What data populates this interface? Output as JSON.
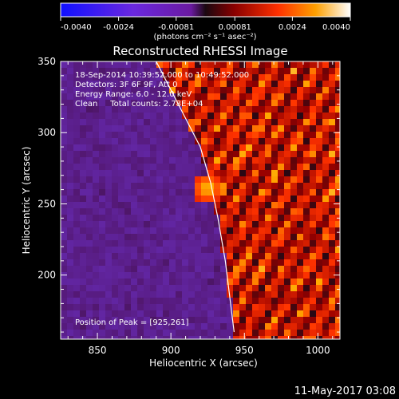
{
  "chart_data": {
    "type": "heatmap",
    "title": "Reconstructed RHESSI Image",
    "xlabel": "Heliocentric X (arcsec)",
    "ylabel": "Heliocentric Y (arcsec)",
    "xlim": [
      825,
      1015
    ],
    "ylim": [
      155,
      350
    ],
    "x_ticks": [
      850,
      900,
      950,
      1000
    ],
    "y_ticks": [
      200,
      250,
      300,
      350
    ],
    "colorbar": {
      "ticks": [
        "-0.0040",
        "-0.0024",
        "-0.00081",
        "0.00081",
        "0.0024",
        "0.0040"
      ],
      "range": [
        -0.004,
        0.004
      ],
      "unit_label": "(photons cm⁻² s⁻¹ asec⁻²)"
    },
    "info": [
      "18-Sep-2014 10:39:52.000 to 10:49:52.000",
      "Detectors: 3F 6F 9F, Att 0",
      "Energy Range: 6.0 - 12.0 keV",
      "Clean     Total counts: 2.78E+04"
    ],
    "peak_label": "Position of Peak = [925,261]",
    "peak": {
      "x": 925,
      "y": 261
    },
    "limb": [
      [
        890,
        350
      ],
      [
        900,
        330
      ],
      [
        910,
        310
      ],
      [
        920,
        290
      ],
      [
        927,
        265
      ],
      [
        932,
        240
      ],
      [
        937,
        210
      ],
      [
        940,
        185
      ],
      [
        943,
        160
      ]
    ],
    "grid": false,
    "timestamp": "11-May-2017 03:08"
  }
}
